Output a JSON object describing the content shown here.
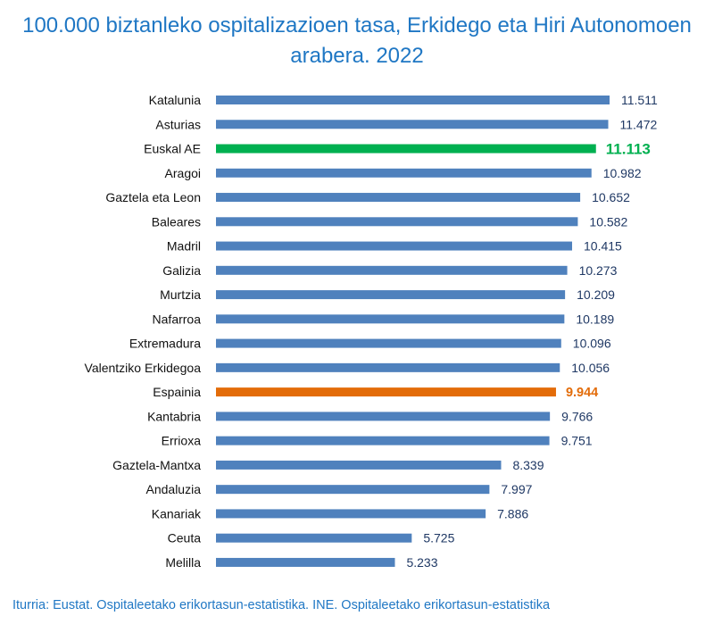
{
  "chart_data": {
    "type": "bar",
    "orientation": "horizontal",
    "title": "100.000 biztanleko ospitalizazioen tasa, Erkidego eta Hiri Autonomoen arabera. 2022",
    "categories": [
      "Katalunia",
      "Asturias",
      "Euskal AE",
      "Aragoi",
      "Gaztela eta Leon",
      "Baleares",
      "Madril",
      "Galizia",
      "Murtzia",
      "Nafarroa",
      "Extremadura",
      "Valentziko Erkidegoa",
      "Espainia",
      "Kantabria",
      "Errioxa",
      "Gaztela-Mantxa",
      "Andaluzia",
      "Kanariak",
      "Ceuta",
      "Melilla"
    ],
    "values": [
      11511,
      11472,
      11113,
      10982,
      10652,
      10582,
      10415,
      10273,
      10209,
      10189,
      10096,
      10056,
      9944,
      9766,
      9751,
      8339,
      7997,
      7886,
      5725,
      5233
    ],
    "value_labels": [
      "11.511",
      "11.472",
      "11.113",
      "10.982",
      "10.652",
      "10.582",
      "10.415",
      "10.273",
      "10.209",
      "10.189",
      "10.096",
      "10.056",
      "9.944",
      "9.766",
      "9.751",
      "8.339",
      "7.997",
      "7.886",
      "5.725",
      "5.233"
    ],
    "xlim": [
      0,
      11511
    ],
    "grid": false,
    "legend": "none",
    "colors": {
      "default": "#4f81bd",
      "Euskal AE": "#00b050",
      "Espainia": "#e36c09",
      "value_label": "#1f3864"
    },
    "highlighted": [
      "Euskal AE",
      "Espainia"
    ]
  },
  "source": "Iturria: Eustat. Ospitaleetako erikortasun-estatistika. INE. Ospitaleetako erikortasun-estatistika"
}
